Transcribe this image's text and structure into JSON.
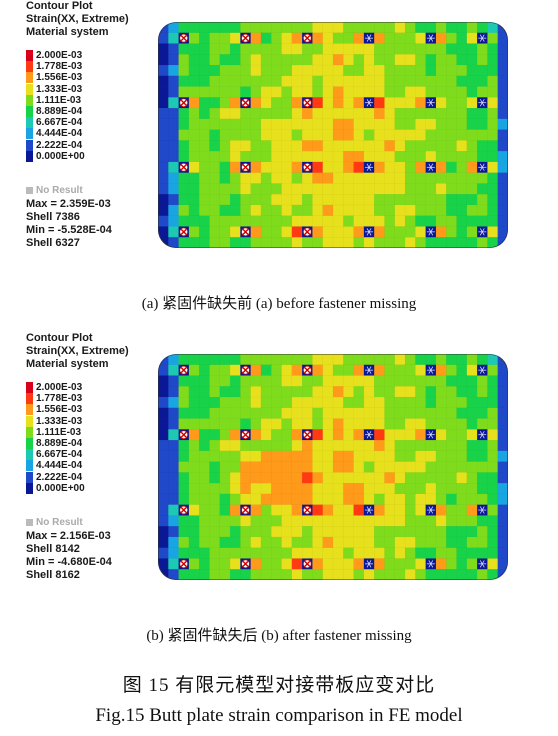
{
  "legend_common": {
    "title": "Contour Plot",
    "subtitle": "Strain(XX, Extreme)",
    "system": "Material system",
    "no_result": "No Result",
    "scale": [
      {
        "value": "2.000E-03",
        "color": "#d8001a"
      },
      {
        "value": "1.778E-03",
        "color": "#ff3a12"
      },
      {
        "value": "1.556E-03",
        "color": "#ff9a1a"
      },
      {
        "value": "1.333E-03",
        "color": "#e7e01c"
      },
      {
        "value": "1.111E-03",
        "color": "#7fdc1c"
      },
      {
        "value": "8.889E-04",
        "color": "#18d34a"
      },
      {
        "value": "6.667E-04",
        "color": "#1ec9b4"
      },
      {
        "value": "4.444E-04",
        "color": "#19a5e2"
      },
      {
        "value": "2.222E-04",
        "color": "#1f49c9"
      },
      {
        "value": "0.000E+00",
        "color": "#0b1896"
      }
    ]
  },
  "panels": [
    {
      "id": "a",
      "max_line": "Max = 2.359E-03",
      "max_shell": "Shell 7386",
      "min_line": "Min = -5.528E-04",
      "min_shell": "Shell 6327",
      "caption": "(a)  紧固件缺失前  (a) before fastener missing"
    },
    {
      "id": "b",
      "max_line": "Max = 2.156E-03",
      "max_shell": "Shell 8142",
      "min_line": "Min = -4.680E-04",
      "min_shell": "Shell 8162",
      "caption": "(b)  紧固件缺失后  (b) after fastener missing"
    }
  ],
  "figure": {
    "caption_cn": "图 15    有限元模型对接带板应变对比",
    "caption_en": "Fig.15    Butt plate strain comparison in FE model"
  }
}
